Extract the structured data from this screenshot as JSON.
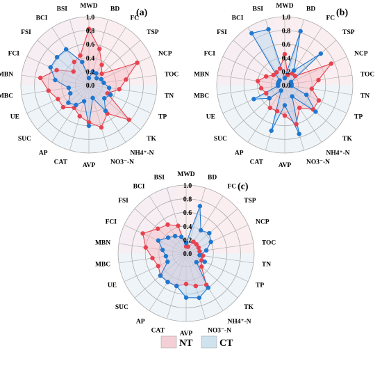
{
  "legend": {
    "items": [
      {
        "label": "NT",
        "color": "#f4cfd6"
      },
      {
        "label": "CT",
        "color": "#cfe3ef"
      }
    ]
  },
  "chart_data": [
    {
      "type": "radar",
      "panel": "(a)",
      "axes": [
        "MWD",
        "BD",
        "FC",
        "TSP",
        "NCP",
        "TOC",
        "TN",
        "TP",
        "TK",
        "NH4⁺-N",
        "NO3⁻-N",
        "AVP",
        "CAT",
        "AP",
        "SUC",
        "UE",
        "MBC",
        "MBN",
        "FCI",
        "FSI",
        "BCI",
        "BSI"
      ],
      "rlim": [
        0,
        1.0
      ],
      "ticks": [
        "0.0",
        "0.2",
        "0.4",
        "0.6",
        "0.8",
        "1.0"
      ],
      "series": [
        {
          "name": "NT",
          "color": "#e8424f",
          "fill": "#f4b8c0",
          "values": [
            0.82,
            0.55,
            0.35,
            0.25,
            0.78,
            0.55,
            0.45,
            0.3,
            0.78,
            0.5,
            0.65,
            0.55,
            0.48,
            0.4,
            0.5,
            0.5,
            0.6,
            0.72,
            0.52,
            0.3,
            0.4,
            0.45
          ]
        },
        {
          "name": "CT",
          "color": "#1f78d0",
          "fill": "#b9d5ee",
          "values": [
            0.1,
            0.2,
            0.2,
            0.15,
            0.2,
            0.22,
            0.3,
            0.35,
            0.3,
            0.45,
            0.2,
            0.6,
            0.25,
            0.35,
            0.4,
            0.3,
            0.3,
            0.5,
            0.62,
            0.62,
            0.62,
            0.35
          ]
        }
      ]
    },
    {
      "type": "radar",
      "panel": "(b)",
      "axes": [
        "MWD",
        "BD",
        "FC",
        "TSP",
        "NCP",
        "TOC",
        "TN",
        "TP",
        "TK",
        "NH4⁺-N",
        "NO3⁻-N",
        "AVP",
        "CAT",
        "AP",
        "SUC",
        "UE",
        "MBC",
        "MBN",
        "FCI",
        "FSI",
        "BCI",
        "BSI"
      ],
      "rlim": [
        0,
        1.0
      ],
      "ticks": [
        "0.0",
        "0.2",
        "0.4",
        "0.6",
        "0.8",
        "1.0"
      ],
      "series": [
        {
          "name": "NT",
          "color": "#e8424f",
          "fill": "#f4b8c0",
          "values": [
            0.45,
            0.15,
            0.2,
            0.2,
            0.75,
            0.5,
            0.4,
            0.55,
            0.55,
            0.4,
            0.6,
            0.45,
            0.4,
            0.4,
            0.3,
            0.3,
            0.35,
            0.4,
            0.3,
            0.22,
            0.22,
            0.25
          ]
        },
        {
          "name": "CT",
          "color": "#1f78d0",
          "fill": "#b9d5ee",
          "values": [
            0.1,
            0.82,
            0.25,
            0.7,
            0.1,
            0.1,
            0.1,
            0.35,
            0.6,
            0.2,
            0.75,
            0.3,
            0.7,
            0.1,
            0.3,
            0.5,
            0.1,
            0.1,
            0.1,
            0.1,
            0.9,
            0.85
          ]
        }
      ]
    },
    {
      "type": "radar",
      "panel": "(c)",
      "axes": [
        "MWD",
        "BD",
        "FC",
        "TSP",
        "NCP",
        "TOC",
        "TN",
        "TP",
        "TK",
        "NH4⁺-N",
        "NO3⁻-N",
        "AVP",
        "CAT",
        "AP",
        "SUC",
        "UE",
        "MBC",
        "MBN",
        "FCI",
        "FSI",
        "BCI",
        "BSI"
      ],
      "rlim": [
        0,
        1.0
      ],
      "ticks": [
        "0.0",
        "0.2",
        "0.4",
        "0.6",
        "0.8",
        "1.0"
      ],
      "series": [
        {
          "name": "NT",
          "color": "#e8424f",
          "fill": "#f4b8c0",
          "values": [
            0.1,
            0.1,
            0.2,
            0.2,
            0.2,
            0.2,
            0.25,
            0.25,
            0.3,
            0.55,
            0.5,
            0.45,
            0.5,
            0.5,
            0.5,
            0.45,
            0.5,
            0.6,
            0.7,
            0.55,
            0.5,
            0.42
          ]
        },
        {
          "name": "CT",
          "color": "#1f78d0",
          "fill": "#b9d5ee",
          "values": [
            0.15,
            0.72,
            0.4,
            0.45,
            0.4,
            0.3,
            0.2,
            0.3,
            0.2,
            0.6,
            0.68,
            0.65,
            0.5,
            0.5,
            0.5,
            0.3,
            0.3,
            0.35,
            0.45,
            0.35,
            0.3,
            0.25
          ]
        }
      ]
    }
  ]
}
